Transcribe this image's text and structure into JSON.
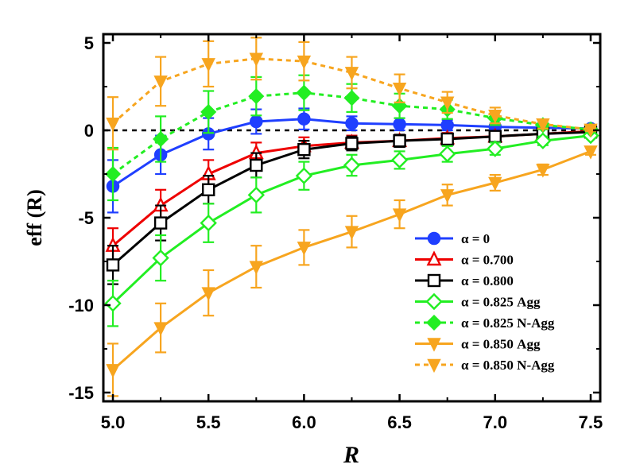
{
  "chart_data": {
    "type": "line",
    "title": "",
    "xlabel": "R",
    "ylabel": "eff (R)",
    "xlim": [
      4.95,
      7.55
    ],
    "ylim": [
      -15.5,
      5.5
    ],
    "xticks": [
      5.0,
      5.5,
      6.0,
      6.5,
      7.0,
      7.5
    ],
    "xtick_labels": [
      "5.0",
      "5.5",
      "6.0",
      "6.5",
      "7.0",
      "7.5"
    ],
    "yticks": [
      -15,
      -10,
      -5,
      0,
      5
    ],
    "ytick_labels": [
      "-15",
      "-10",
      "-5",
      "0",
      "5"
    ],
    "reference_line": 0,
    "grid": false,
    "legend_position": "lower-right",
    "x": [
      5.0,
      5.25,
      5.5,
      5.75,
      6.0,
      6.25,
      6.5,
      6.75,
      7.0,
      7.25,
      7.5
    ],
    "series": [
      {
        "name": "α = 0",
        "color": "#1f3fff",
        "marker": "circle-filled",
        "dashed": false,
        "values": [
          -3.2,
          -1.4,
          -0.2,
          0.5,
          0.65,
          0.4,
          0.35,
          0.3,
          0.2,
          0.15,
          0.1
        ],
        "errors": [
          1.5,
          1.1,
          0.9,
          0.7,
          0.6,
          0.4,
          0.35,
          0.3,
          0.2,
          0.1,
          0.05
        ]
      },
      {
        "name": "α = 0.700",
        "color": "#ee0000",
        "marker": "triangle-up-open",
        "dashed": false,
        "values": [
          -6.6,
          -4.3,
          -2.5,
          -1.3,
          -0.9,
          -0.7,
          -0.6,
          -0.45,
          -0.35,
          -0.2,
          -0.05
        ],
        "errors": [
          1.0,
          0.9,
          0.8,
          0.6,
          0.5,
          0.4,
          0.35,
          0.3,
          0.2,
          0.15,
          0.05
        ]
      },
      {
        "name": "α = 0.800",
        "color": "#000000",
        "marker": "square-open",
        "dashed": false,
        "values": [
          -7.7,
          -5.3,
          -3.4,
          -2.0,
          -1.1,
          -0.75,
          -0.6,
          -0.5,
          -0.35,
          -0.2,
          -0.1
        ],
        "errors": [
          1.1,
          1.0,
          0.8,
          0.7,
          0.5,
          0.4,
          0.35,
          0.3,
          0.2,
          0.15,
          0.05
        ]
      },
      {
        "name": "α = 0.825 Agg",
        "color": "#22ee22",
        "marker": "diamond-open",
        "dashed": false,
        "values": [
          -9.9,
          -7.3,
          -5.3,
          -3.7,
          -2.6,
          -2.0,
          -1.7,
          -1.35,
          -1.05,
          -0.6,
          -0.3
        ],
        "errors": [
          1.3,
          1.3,
          1.1,
          1.0,
          0.8,
          0.6,
          0.5,
          0.45,
          0.35,
          0.25,
          0.1
        ]
      },
      {
        "name": "α = 0.825 N-Agg",
        "color": "#22ee22",
        "marker": "diamond-filled",
        "dashed": true,
        "values": [
          -2.5,
          -0.5,
          1.05,
          1.95,
          2.15,
          1.85,
          1.4,
          1.2,
          0.7,
          0.3,
          0.05
        ],
        "errors": [
          1.5,
          1.3,
          1.2,
          1.1,
          1.0,
          0.8,
          0.7,
          0.55,
          0.4,
          0.25,
          0.1
        ]
      },
      {
        "name": "α = 0.850 Agg",
        "color": "#f7a51f",
        "marker": "triangle-down-filled",
        "dashed": false,
        "values": [
          -13.7,
          -11.3,
          -9.3,
          -7.8,
          -6.7,
          -5.8,
          -4.8,
          -3.7,
          -3.0,
          -2.25,
          -1.2
        ],
        "errors": [
          1.5,
          1.4,
          1.3,
          1.2,
          1.0,
          0.9,
          0.8,
          0.6,
          0.45,
          0.3,
          0.2
        ]
      },
      {
        "name": "α = 0.850 N-Agg",
        "color": "#f7a51f",
        "marker": "triangle-down-filled",
        "dashed": true,
        "values": [
          0.4,
          2.8,
          3.8,
          4.1,
          3.95,
          3.3,
          2.4,
          1.6,
          0.85,
          0.35,
          0.05
        ],
        "errors": [
          1.5,
          1.4,
          1.3,
          1.2,
          1.1,
          0.9,
          0.8,
          0.6,
          0.45,
          0.25,
          0.1
        ]
      }
    ]
  }
}
